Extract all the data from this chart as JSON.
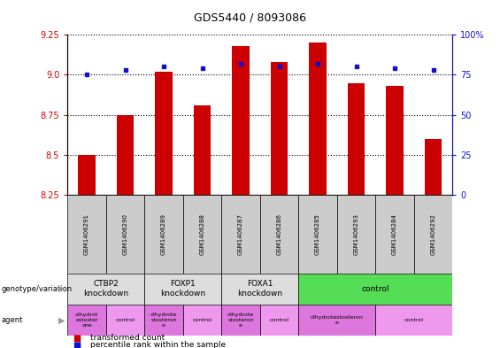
{
  "title": "GDS5440 / 8093086",
  "samples": [
    "GSM1406291",
    "GSM1406290",
    "GSM1406289",
    "GSM1406288",
    "GSM1406287",
    "GSM1406286",
    "GSM1406285",
    "GSM1406293",
    "GSM1406284",
    "GSM1406292"
  ],
  "transformed_count": [
    8.5,
    8.75,
    9.02,
    8.81,
    9.18,
    9.08,
    9.2,
    8.95,
    8.93,
    8.6
  ],
  "percentile_rank": [
    75,
    78,
    80,
    79,
    82,
    80,
    82,
    80,
    79,
    78
  ],
  "ylim": [
    8.25,
    9.25
  ],
  "yticks": [
    8.25,
    8.5,
    8.75,
    9.0,
    9.25
  ],
  "right_yticks": [
    0,
    25,
    50,
    75,
    100
  ],
  "right_ylim": [
    0,
    100
  ],
  "bar_color": "#cc0000",
  "dot_color": "#1111cc",
  "left_tick_color": "#cc0000",
  "right_tick_color": "#1111cc",
  "genotype_groups": [
    {
      "label": "CTBP2\nknockdown",
      "start": 0,
      "end": 2,
      "color": "#dddddd"
    },
    {
      "label": "FOXP1\nknockdown",
      "start": 2,
      "end": 4,
      "color": "#dddddd"
    },
    {
      "label": "FOXA1\nknockdown",
      "start": 4,
      "end": 6,
      "color": "#dddddd"
    },
    {
      "label": "control",
      "start": 6,
      "end": 10,
      "color": "#55dd55"
    }
  ],
  "agent_groups": [
    {
      "label": "dihydrot\nestoster\none",
      "start": 0,
      "end": 1,
      "color": "#dd77dd"
    },
    {
      "label": "control",
      "start": 1,
      "end": 2,
      "color": "#ee99ee"
    },
    {
      "label": "dihydrote\nstosteron\ne",
      "start": 2,
      "end": 3,
      "color": "#dd77dd"
    },
    {
      "label": "control",
      "start": 3,
      "end": 4,
      "color": "#ee99ee"
    },
    {
      "label": "dihydrote\nstosteron\ne",
      "start": 4,
      "end": 5,
      "color": "#dd77dd"
    },
    {
      "label": "control",
      "start": 5,
      "end": 6,
      "color": "#ee99ee"
    },
    {
      "label": "dihydrotestosteron\ne",
      "start": 6,
      "end": 8,
      "color": "#dd77dd"
    },
    {
      "label": "control",
      "start": 8,
      "end": 10,
      "color": "#ee99ee"
    }
  ]
}
